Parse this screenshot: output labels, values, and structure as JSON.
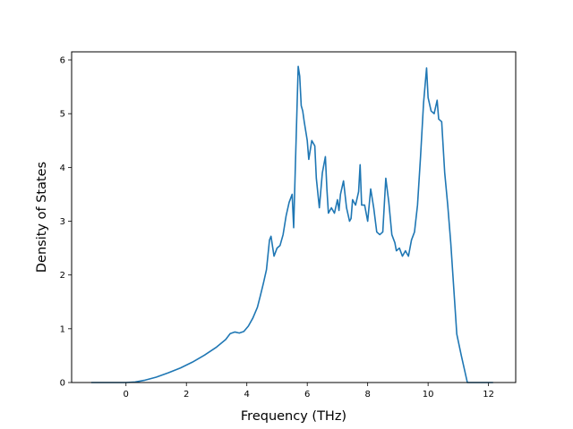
{
  "chart_data": {
    "type": "line",
    "title": "",
    "xlabel": "Frequency (THz)",
    "ylabel": "Density of States",
    "xlim": [
      -1.8,
      12.9
    ],
    "ylim": [
      0,
      6.15
    ],
    "xticks": [
      0,
      2,
      4,
      6,
      8,
      10,
      12
    ],
    "yticks": [
      0,
      1,
      2,
      3,
      4,
      5,
      6
    ],
    "grid": false,
    "legend": "none",
    "series": [
      {
        "color": "#1f77b4",
        "x": [
          -1.15,
          -0.5,
          0.0,
          0.3,
          0.6,
          1.0,
          1.4,
          1.8,
          2.2,
          2.6,
          3.0,
          3.3,
          3.45,
          3.6,
          3.75,
          3.9,
          4.05,
          4.2,
          4.35,
          4.45,
          4.55,
          4.65,
          4.75,
          4.8,
          4.9,
          5.0,
          5.1,
          5.2,
          5.3,
          5.4,
          5.5,
          5.55,
          5.6,
          5.7,
          5.75,
          5.8,
          5.85,
          5.9,
          6.0,
          6.05,
          6.15,
          6.25,
          6.3,
          6.4,
          6.5,
          6.6,
          6.65,
          6.7,
          6.8,
          6.9,
          7.0,
          7.05,
          7.1,
          7.2,
          7.3,
          7.4,
          7.45,
          7.5,
          7.6,
          7.7,
          7.75,
          7.8,
          7.9,
          8.0,
          8.1,
          8.2,
          8.3,
          8.4,
          8.5,
          8.6,
          8.7,
          8.8,
          8.9,
          8.95,
          9.05,
          9.15,
          9.25,
          9.35,
          9.45,
          9.55,
          9.65,
          9.75,
          9.85,
          9.95,
          10.0,
          10.1,
          10.2,
          10.3,
          10.35,
          10.45,
          10.55,
          10.65,
          10.75,
          10.85,
          10.95,
          11.1,
          11.3,
          11.6,
          12.15
        ],
        "y": [
          0,
          0,
          0,
          0.01,
          0.04,
          0.1,
          0.18,
          0.27,
          0.38,
          0.51,
          0.66,
          0.8,
          0.91,
          0.94,
          0.92,
          0.95,
          1.05,
          1.2,
          1.4,
          1.62,
          1.85,
          2.1,
          2.65,
          2.72,
          2.35,
          2.5,
          2.55,
          2.75,
          3.1,
          3.35,
          3.5,
          2.88,
          3.9,
          5.88,
          5.7,
          5.15,
          5.05,
          4.85,
          4.5,
          4.15,
          4.5,
          4.4,
          3.8,
          3.25,
          3.9,
          4.2,
          3.6,
          3.15,
          3.25,
          3.15,
          3.4,
          3.2,
          3.5,
          3.75,
          3.25,
          3.0,
          3.05,
          3.4,
          3.3,
          3.55,
          4.05,
          3.3,
          3.3,
          3.0,
          3.6,
          3.25,
          2.8,
          2.75,
          2.8,
          3.8,
          3.35,
          2.75,
          2.6,
          2.45,
          2.5,
          2.35,
          2.45,
          2.35,
          2.65,
          2.8,
          3.3,
          4.2,
          5.2,
          5.85,
          5.3,
          5.05,
          5.0,
          5.25,
          4.9,
          4.85,
          3.9,
          3.3,
          2.6,
          1.75,
          0.9,
          0.5,
          0.0,
          0,
          0
        ]
      }
    ]
  }
}
